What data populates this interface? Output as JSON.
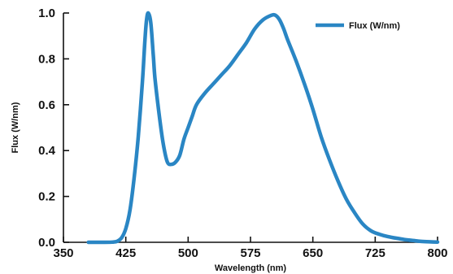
{
  "chart_data": {
    "type": "line",
    "title": "",
    "xlabel": "Wavelength (nm)",
    "ylabel": "Flux (W/nm)",
    "xlim": [
      350,
      800
    ],
    "ylim": [
      0.0,
      1.0
    ],
    "x_ticks": [
      "350",
      "425",
      "500",
      "575",
      "650",
      "725",
      "800"
    ],
    "y_ticks": [
      "0.0",
      "0.2",
      "0.4",
      "0.6",
      "0.8",
      "1.0"
    ],
    "x_tick_values": [
      350,
      425,
      500,
      575,
      650,
      725,
      800
    ],
    "y_tick_values": [
      0.0,
      0.2,
      0.4,
      0.6,
      0.8,
      1.0
    ],
    "grid": false,
    "legend_position": "top-right",
    "series": [
      {
        "name": "Flux (W/nm)",
        "color": "#2a86c4",
        "x": [
          380,
          400,
          410,
          415,
          420,
          425,
          430,
          435,
          440,
          445,
          448,
          450,
          452,
          455,
          458,
          460,
          465,
          470,
          475,
          480,
          485,
          490,
          495,
          500,
          505,
          510,
          520,
          530,
          540,
          550,
          560,
          570,
          580,
          590,
          600,
          605,
          610,
          615,
          620,
          630,
          640,
          650,
          660,
          670,
          680,
          690,
          700,
          710,
          720,
          730,
          740,
          750,
          760,
          770,
          780,
          790,
          800
        ],
        "y": [
          0.0,
          0.0,
          0.001,
          0.005,
          0.02,
          0.06,
          0.14,
          0.28,
          0.46,
          0.7,
          0.88,
          0.97,
          1.0,
          0.96,
          0.82,
          0.72,
          0.56,
          0.43,
          0.35,
          0.34,
          0.35,
          0.38,
          0.45,
          0.5,
          0.55,
          0.6,
          0.65,
          0.69,
          0.73,
          0.77,
          0.82,
          0.87,
          0.93,
          0.97,
          0.99,
          0.99,
          0.97,
          0.93,
          0.88,
          0.79,
          0.69,
          0.58,
          0.46,
          0.36,
          0.27,
          0.19,
          0.13,
          0.08,
          0.05,
          0.035,
          0.025,
          0.018,
          0.012,
          0.008,
          0.004,
          0.002,
          0.001
        ]
      }
    ]
  }
}
